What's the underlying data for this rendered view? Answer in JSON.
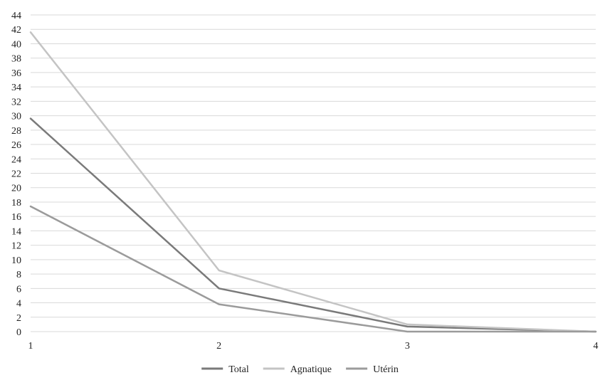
{
  "chart_data": {
    "type": "line",
    "title": "",
    "xlabel": "",
    "ylabel": "",
    "x": [
      1,
      2,
      3,
      4
    ],
    "xlim": [
      1,
      4
    ],
    "ylim": [
      0,
      44
    ],
    "ytick_step": 2,
    "grid": true,
    "legend_position": "bottom",
    "series": [
      {
        "name": "Total",
        "color": "#7a7a7a",
        "values": [
          29.6,
          6.0,
          0.7,
          0.0
        ]
      },
      {
        "name": "Agnatique",
        "color": "#c4c4c4",
        "values": [
          41.6,
          8.5,
          1.0,
          0.0
        ]
      },
      {
        "name": "Utérin",
        "color": "#9b9b9b",
        "values": [
          17.4,
          3.8,
          0.0,
          0.0
        ]
      }
    ]
  }
}
